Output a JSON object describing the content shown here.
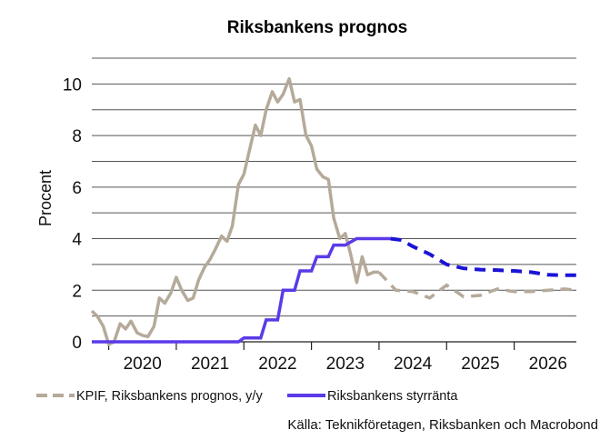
{
  "chart_data": {
    "type": "line",
    "title": "Riksbankens prognos",
    "xlabel": "",
    "ylabel": "Procent",
    "ylim": [
      0,
      11
    ],
    "yticks": [
      0,
      2,
      4,
      6,
      8,
      10
    ],
    "xlim": [
      2019.75,
      2026.92
    ],
    "year_labels": [
      "2020",
      "2021",
      "2022",
      "2023",
      "2024",
      "2025",
      "2026"
    ],
    "grid": true,
    "legend_position": "bottom-left",
    "source": "Källa: Teknikföretagen, Riksbanken och Macrobond",
    "colors": {
      "kpif": "#b5aa9a",
      "rate": "#5b3ae8",
      "rate_forecast": "#1a13d6",
      "grid": "#555555"
    },
    "series": [
      {
        "name": "KPIF, Riksbankens prognos, y/y",
        "outcome": {
          "x": [
            2019.75,
            2019.83,
            2019.92,
            2020.0,
            2020.08,
            2020.17,
            2020.25,
            2020.33,
            2020.42,
            2020.5,
            2020.58,
            2020.67,
            2020.75,
            2020.83,
            2020.92,
            2021.0,
            2021.08,
            2021.17,
            2021.25,
            2021.33,
            2021.42,
            2021.5,
            2021.58,
            2021.67,
            2021.75,
            2021.83,
            2021.92,
            2022.0,
            2022.08,
            2022.17,
            2022.25,
            2022.33,
            2022.42,
            2022.5,
            2022.58,
            2022.67,
            2022.75,
            2022.83,
            2022.92,
            2023.0,
            2023.08,
            2023.17,
            2023.25,
            2023.33,
            2023.42,
            2023.5,
            2023.58,
            2023.67,
            2023.75,
            2023.83,
            2023.92,
            2024.0
          ],
          "y": [
            1.2,
            1.0,
            0.6,
            -0.1,
            0.0,
            0.7,
            0.5,
            0.8,
            0.35,
            0.25,
            0.2,
            0.6,
            1.7,
            1.5,
            1.9,
            2.5,
            2.0,
            1.6,
            1.7,
            2.4,
            2.9,
            3.2,
            3.6,
            4.1,
            3.9,
            4.5,
            6.1,
            6.5,
            7.4,
            8.4,
            8.0,
            9.0,
            9.7,
            9.3,
            9.6,
            10.2,
            9.3,
            9.4,
            8.0,
            7.6,
            6.7,
            6.4,
            6.3,
            4.8,
            4.0,
            4.2,
            3.4,
            2.3,
            3.3,
            2.6,
            2.7,
            2.7
          ]
        },
        "forecast": {
          "x": [
            2024.0,
            2024.25,
            2024.5,
            2024.75,
            2025.0,
            2025.25,
            2025.5,
            2025.75,
            2026.0,
            2026.25,
            2026.5,
            2026.75,
            2026.92
          ],
          "y": [
            2.7,
            2.0,
            1.95,
            1.7,
            2.2,
            1.75,
            1.8,
            2.05,
            1.95,
            1.95,
            2.0,
            2.05,
            2.0
          ]
        }
      },
      {
        "name": "Riksbankens styrränta",
        "outcome": {
          "x": [
            2019.75,
            2021.92,
            2022.0,
            2022.25,
            2022.33,
            2022.5,
            2022.58,
            2022.75,
            2022.83,
            2023.0,
            2023.08,
            2023.25,
            2023.33,
            2023.5,
            2023.67,
            2024.17
          ],
          "y": [
            0,
            0,
            0.15,
            0.15,
            0.85,
            0.85,
            2.0,
            2.0,
            2.75,
            2.75,
            3.3,
            3.3,
            3.75,
            3.75,
            4.0,
            4.0
          ]
        },
        "forecast": {
          "x": [
            2024.17,
            2024.33,
            2024.5,
            2024.75,
            2025.0,
            2025.25,
            2025.5,
            2025.75,
            2026.0,
            2026.25,
            2026.5,
            2026.75,
            2026.92
          ],
          "y": [
            4.0,
            3.95,
            3.7,
            3.4,
            3.0,
            2.85,
            2.8,
            2.78,
            2.75,
            2.7,
            2.6,
            2.58,
            2.58
          ]
        }
      }
    ]
  }
}
